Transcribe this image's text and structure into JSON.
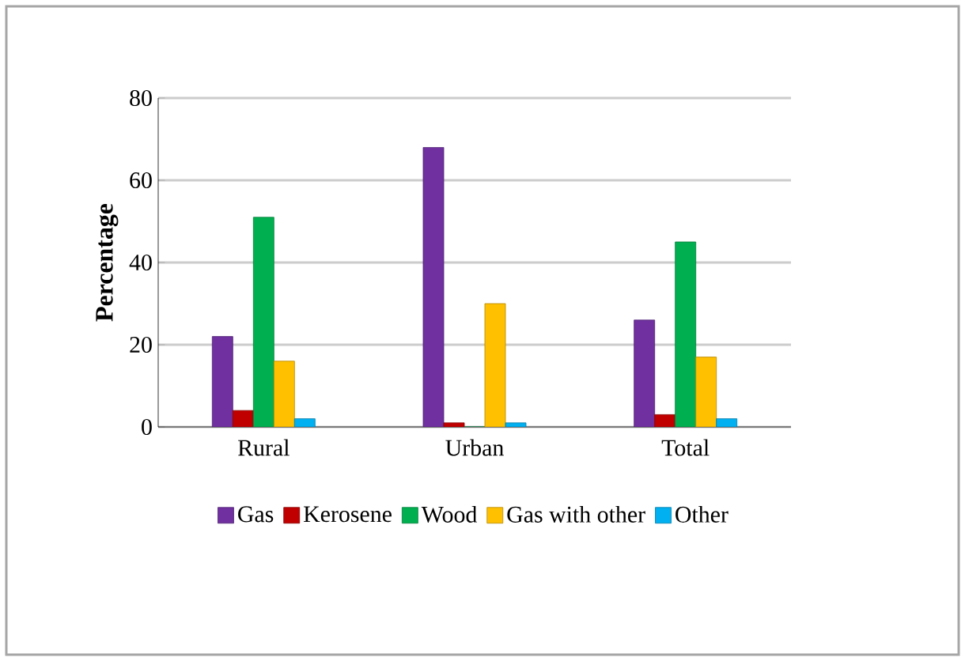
{
  "chart_data": {
    "type": "bar",
    "ylabel": "Percentage",
    "categories": [
      "Rural",
      "Urban",
      "Total"
    ],
    "series": [
      {
        "name": "Gas",
        "color": "#7030a0",
        "values": [
          22,
          68,
          26
        ]
      },
      {
        "name": "Kerosene",
        "color": "#c00000",
        "values": [
          4,
          1,
          3
        ]
      },
      {
        "name": "Wood",
        "color": "#00b050",
        "values": [
          51,
          0,
          45
        ]
      },
      {
        "name": "Gas with other",
        "color": "#ffc000",
        "values": [
          16,
          30,
          17
        ]
      },
      {
        "name": "Other",
        "color": "#00b0f0",
        "values": [
          2,
          1,
          2
        ]
      }
    ],
    "ylim": [
      0,
      80
    ],
    "yticks": [
      0,
      20,
      40,
      60,
      80
    ],
    "grid": "y",
    "legend": "bottom"
  }
}
